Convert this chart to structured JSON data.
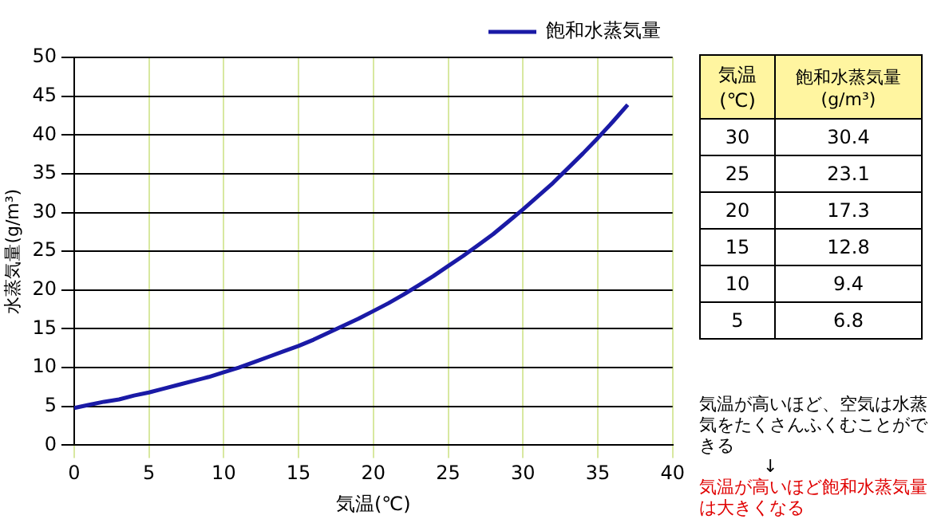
{
  "chart_data": [
    {
      "type": "line",
      "xlabel": "気温(℃)",
      "ylabel": "水蒸気量(g/m³)",
      "x": [
        0,
        1,
        2,
        3,
        4,
        5,
        6,
        7,
        8,
        9,
        10,
        11,
        12,
        13,
        14,
        15,
        16,
        17,
        18,
        19,
        20,
        21,
        22,
        23,
        24,
        25,
        26,
        27,
        28,
        29,
        30,
        31,
        32,
        33,
        34,
        35,
        36,
        37
      ],
      "series": [
        {
          "name": "飽和水蒸気量",
          "color": "#1a1aa6",
          "values": [
            4.8,
            5.2,
            5.6,
            5.9,
            6.4,
            6.8,
            7.3,
            7.8,
            8.3,
            8.8,
            9.4,
            10.0,
            10.7,
            11.4,
            12.1,
            12.8,
            13.6,
            14.5,
            15.4,
            16.3,
            17.3,
            18.3,
            19.4,
            20.6,
            21.8,
            23.1,
            24.4,
            25.8,
            27.2,
            28.8,
            30.4,
            32.1,
            33.8,
            35.7,
            37.6,
            39.6,
            41.7,
            43.9
          ]
        }
      ],
      "xlim": [
        0,
        40
      ],
      "xticks": [
        0,
        5,
        10,
        15,
        20,
        25,
        30,
        35,
        40
      ],
      "ylim": [
        0,
        50
      ],
      "yticks": [
        0,
        5,
        10,
        15,
        20,
        25,
        30,
        35,
        40,
        45,
        50
      ],
      "grid": true,
      "legend": "top right",
      "marker": "none",
      "line_style": "solid"
    },
    {
      "type": "heatmap",
      "ylabel": "気温(℃)",
      "categories": [
        "飽和水蒸気量(g/m³)"
      ],
      "y_categories": [
        "30",
        "25",
        "20",
        "15",
        "10",
        "5"
      ],
      "cells": [
        [
          30.4
        ],
        [
          23.1
        ],
        [
          17.3
        ],
        [
          12.8
        ],
        [
          9.4
        ],
        [
          6.8
        ]
      ],
      "data_labels": true,
      "annotations": [
        "気温が高いほど、空気は水蒸気をたくさんふくむことができる",
        "↓",
        "気温が高いほど飽和水蒸気量は大きくなる"
      ]
    }
  ]
}
